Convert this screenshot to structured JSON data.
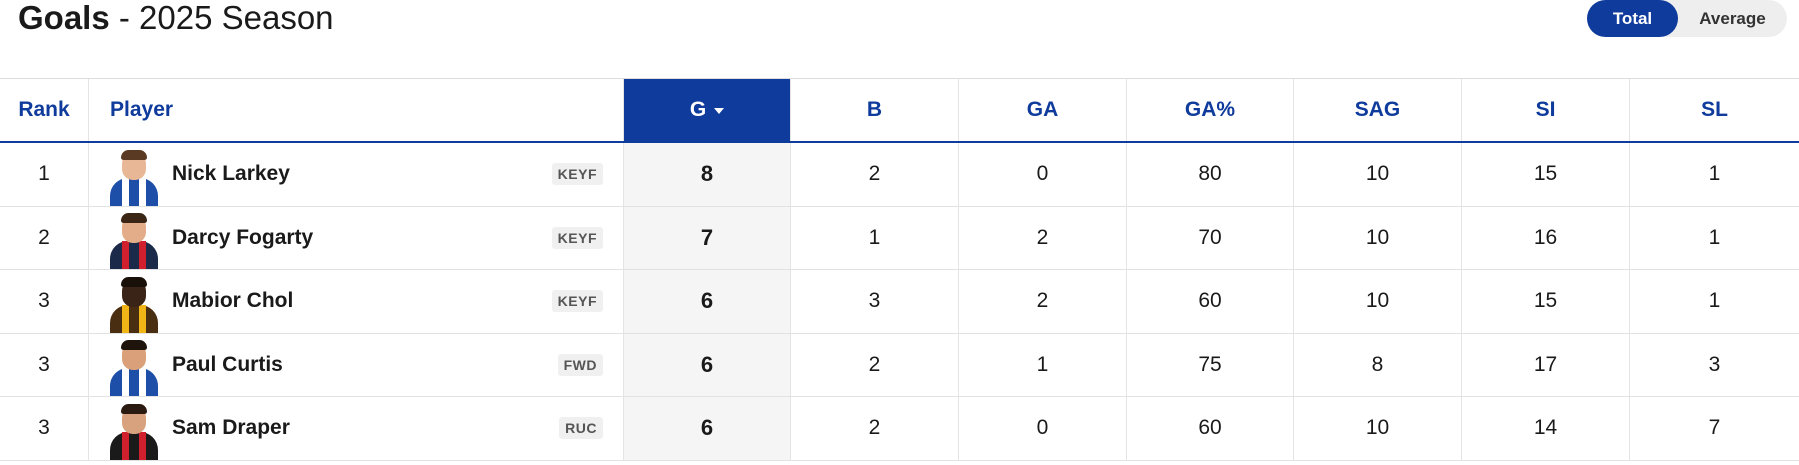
{
  "header": {
    "title_strong": "Goals",
    "title_rest": " - 2025 Season"
  },
  "toggle": {
    "options": [
      {
        "label": "Total",
        "selected": true
      },
      {
        "label": "Average",
        "selected": false
      }
    ]
  },
  "columns": {
    "rank": "Rank",
    "player": "Player",
    "g": "G",
    "b": "B",
    "ga": "GA",
    "gap": "GA%",
    "sag": "SAG",
    "si": "SI",
    "sl": "SL"
  },
  "rows": [
    {
      "rank": "1",
      "name": "Nick Larkey",
      "pos": "KEYF",
      "g": "8",
      "b": "2",
      "ga": "0",
      "gap": "80",
      "sag": "10",
      "si": "15",
      "sl": "1",
      "face": "#e8b896",
      "hair": "#5a3a22",
      "jersey": "#1e4fa8",
      "stripe": "#ffffff"
    },
    {
      "rank": "2",
      "name": "Darcy Fogarty",
      "pos": "KEYF",
      "g": "7",
      "b": "1",
      "ga": "2",
      "gap": "70",
      "sag": "10",
      "si": "16",
      "sl": "1",
      "face": "#e2ad88",
      "hair": "#3b2616",
      "jersey": "#1c2a4a",
      "stripe": "#d0202e"
    },
    {
      "rank": "3",
      "name": "Mabior Chol",
      "pos": "KEYF",
      "g": "6",
      "b": "3",
      "ga": "2",
      "gap": "60",
      "sag": "10",
      "si": "15",
      "sl": "1",
      "face": "#3a2418",
      "hair": "#1a100a",
      "jersey": "#4a2e12",
      "stripe": "#f2b516"
    },
    {
      "rank": "3",
      "name": "Paul Curtis",
      "pos": "FWD",
      "g": "6",
      "b": "2",
      "ga": "1",
      "gap": "75",
      "sag": "8",
      "si": "17",
      "sl": "3",
      "face": "#d9a07a",
      "hair": "#1f140c",
      "jersey": "#1e4fa8",
      "stripe": "#ffffff"
    },
    {
      "rank": "3",
      "name": "Sam Draper",
      "pos": "RUC",
      "g": "6",
      "b": "2",
      "ga": "0",
      "gap": "60",
      "sag": "10",
      "si": "14",
      "sl": "7",
      "face": "#d8a27e",
      "hair": "#2a1a10",
      "jersey": "#1a1a1a",
      "stripe": "#d0202e"
    }
  ]
}
